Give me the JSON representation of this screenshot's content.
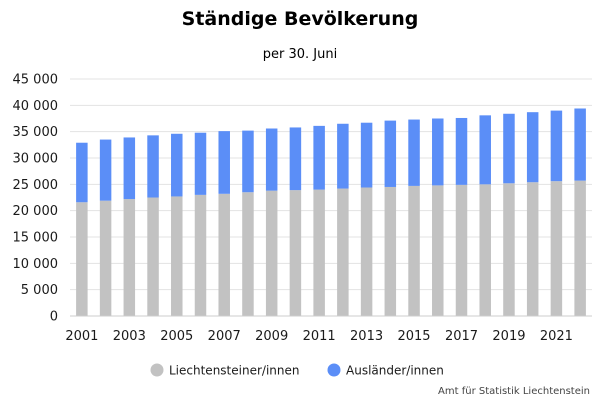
{
  "chart_data": {
    "type": "bar",
    "stacked": true,
    "title": "Ständige Bevölkerung",
    "subtitle": "per 30. Juni",
    "categories": [
      "2001",
      "2002",
      "2003",
      "2004",
      "2005",
      "2006",
      "2007",
      "2008",
      "2009",
      "2010",
      "2011",
      "2012",
      "2013",
      "2014",
      "2015",
      "2016",
      "2017",
      "2018",
      "2019",
      "2020",
      "2021",
      "2022"
    ],
    "x_tick_labels": [
      "2001",
      "2003",
      "2005",
      "2007",
      "2009",
      "2011",
      "2013",
      "2015",
      "2017",
      "2019",
      "2021"
    ],
    "series": [
      {
        "name": "Liechtensteiner/innen",
        "color": "#c2c2c2",
        "values": [
          21600,
          21900,
          22200,
          22500,
          22700,
          23000,
          23200,
          23500,
          23800,
          23900,
          24000,
          24200,
          24400,
          24500,
          24700,
          24800,
          24900,
          25000,
          25200,
          25400,
          25600,
          25700
        ]
      },
      {
        "name": "Ausländer/innen",
        "color": "#5b8ef7",
        "values": [
          11300,
          11600,
          11700,
          11800,
          11900,
          11800,
          11900,
          11700,
          11800,
          11900,
          12100,
          12300,
          12300,
          12600,
          12600,
          12700,
          12700,
          13100,
          13200,
          13300,
          13400,
          13700
        ]
      }
    ],
    "ylim": [
      0,
      45000
    ],
    "y_ticks": [
      0,
      5000,
      10000,
      15000,
      20000,
      25000,
      30000,
      35000,
      40000,
      45000
    ],
    "y_tick_labels": [
      "0",
      "5 000",
      "10 000",
      "15 000",
      "20 000",
      "25 000",
      "30 000",
      "35 000",
      "40 000",
      "45 000"
    ],
    "grid": true,
    "legend_position": "bottom-center",
    "source": "Amt für Statistik Liechtenstein"
  }
}
